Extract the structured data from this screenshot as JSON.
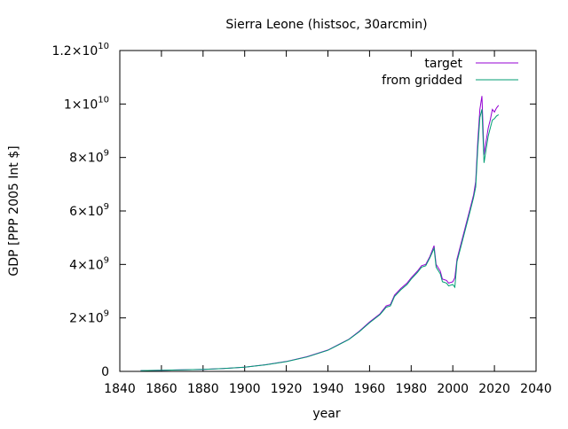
{
  "chart_data": {
    "type": "line",
    "title": "Sierra Leone (histsoc, 30arcmin)",
    "xlabel": "year",
    "ylabel": "GDP [PPP 2005 Int $]",
    "xlim": [
      1840,
      2040
    ],
    "ylim": [
      0,
      12000000000
    ],
    "x_ticks": [
      "1840",
      "1860",
      "1880",
      "1900",
      "1920",
      "1940",
      "1960",
      "1980",
      "2000",
      "2020",
      "2040"
    ],
    "y_ticks": [
      {
        "value": 0,
        "mantissa": "0",
        "exponent": ""
      },
      {
        "value": 2000000000,
        "mantissa": "2×10",
        "exponent": "9"
      },
      {
        "value": 4000000000,
        "mantissa": "4×10",
        "exponent": "9"
      },
      {
        "value": 6000000000,
        "mantissa": "6×10",
        "exponent": "9"
      },
      {
        "value": 8000000000,
        "mantissa": "8×10",
        "exponent": "9"
      },
      {
        "value": 10000000000,
        "mantissa": "1×10",
        "exponent": "10"
      },
      {
        "value": 12000000000,
        "mantissa": "1.2×10",
        "exponent": "10"
      }
    ],
    "grid": false,
    "legend_position": "top-right",
    "series": [
      {
        "name": "target",
        "color": "#9400d3",
        "points": [
          [
            1850,
            30000000
          ],
          [
            1860,
            40000000
          ],
          [
            1870,
            55000000
          ],
          [
            1880,
            75000000
          ],
          [
            1890,
            110000000
          ],
          [
            1900,
            160000000
          ],
          [
            1910,
            250000000
          ],
          [
            1920,
            370000000
          ],
          [
            1930,
            550000000
          ],
          [
            1940,
            800000000
          ],
          [
            1950,
            1200000000
          ],
          [
            1955,
            1500000000
          ],
          [
            1960,
            1850000000
          ],
          [
            1965,
            2150000000
          ],
          [
            1968,
            2450000000
          ],
          [
            1970,
            2500000000
          ],
          [
            1972,
            2850000000
          ],
          [
            1975,
            3100000000
          ],
          [
            1978,
            3300000000
          ],
          [
            1980,
            3500000000
          ],
          [
            1983,
            3750000000
          ],
          [
            1985,
            3950000000
          ],
          [
            1987,
            4000000000
          ],
          [
            1989,
            4300000000
          ],
          [
            1991,
            4700000000
          ],
          [
            1992,
            4000000000
          ],
          [
            1994,
            3750000000
          ],
          [
            1995,
            3450000000
          ],
          [
            1997,
            3400000000
          ],
          [
            1998,
            3300000000
          ],
          [
            2000,
            3350000000
          ],
          [
            2001,
            3500000000
          ],
          [
            2002,
            4200000000
          ],
          [
            2004,
            4800000000
          ],
          [
            2006,
            5400000000
          ],
          [
            2008,
            6000000000
          ],
          [
            2010,
            6600000000
          ],
          [
            2011,
            7100000000
          ],
          [
            2012,
            8600000000
          ],
          [
            2013,
            9800000000
          ],
          [
            2014,
            10300000000
          ],
          [
            2015,
            8100000000
          ],
          [
            2016,
            8600000000
          ],
          [
            2017,
            9100000000
          ],
          [
            2018,
            9400000000
          ],
          [
            2019,
            9800000000
          ],
          [
            2020,
            9700000000
          ],
          [
            2021,
            9850000000
          ],
          [
            2022,
            9950000000
          ]
        ]
      },
      {
        "name": "from gridded",
        "color": "#009e73",
        "points": [
          [
            1850,
            30000000
          ],
          [
            1860,
            40000000
          ],
          [
            1870,
            55000000
          ],
          [
            1880,
            75000000
          ],
          [
            1890,
            110000000
          ],
          [
            1900,
            160000000
          ],
          [
            1910,
            245000000
          ],
          [
            1920,
            365000000
          ],
          [
            1930,
            540000000
          ],
          [
            1940,
            790000000
          ],
          [
            1950,
            1190000000
          ],
          [
            1955,
            1480000000
          ],
          [
            1960,
            1820000000
          ],
          [
            1965,
            2120000000
          ],
          [
            1968,
            2400000000
          ],
          [
            1970,
            2450000000
          ],
          [
            1972,
            2800000000
          ],
          [
            1975,
            3050000000
          ],
          [
            1978,
            3250000000
          ],
          [
            1980,
            3450000000
          ],
          [
            1983,
            3700000000
          ],
          [
            1985,
            3900000000
          ],
          [
            1987,
            3950000000
          ],
          [
            1989,
            4250000000
          ],
          [
            1991,
            4600000000
          ],
          [
            1992,
            3900000000
          ],
          [
            1994,
            3650000000
          ],
          [
            1995,
            3350000000
          ],
          [
            1997,
            3300000000
          ],
          [
            1998,
            3200000000
          ],
          [
            2000,
            3250000000
          ],
          [
            2001,
            3150000000
          ],
          [
            2002,
            4100000000
          ],
          [
            2004,
            4700000000
          ],
          [
            2006,
            5300000000
          ],
          [
            2008,
            5900000000
          ],
          [
            2010,
            6500000000
          ],
          [
            2011,
            6900000000
          ],
          [
            2012,
            8300000000
          ],
          [
            2013,
            9500000000
          ],
          [
            2014,
            9800000000
          ],
          [
            2015,
            7800000000
          ],
          [
            2016,
            8300000000
          ],
          [
            2017,
            8800000000
          ],
          [
            2018,
            9100000000
          ],
          [
            2019,
            9400000000
          ],
          [
            2020,
            9450000000
          ],
          [
            2021,
            9550000000
          ],
          [
            2022,
            9600000000
          ]
        ]
      }
    ]
  }
}
